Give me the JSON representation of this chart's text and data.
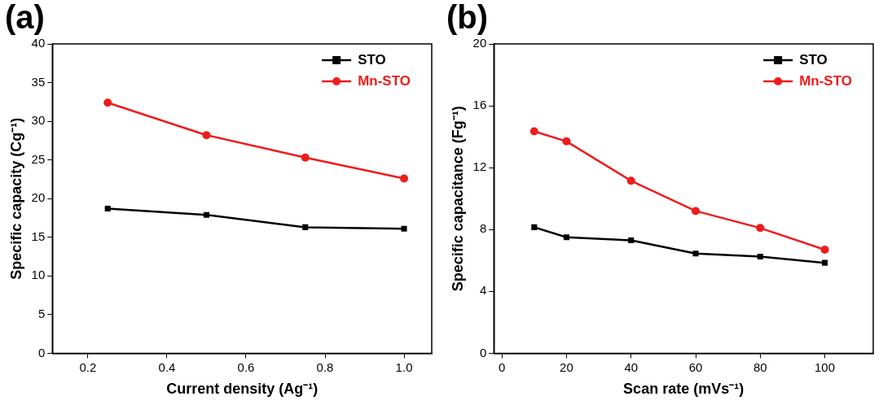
{
  "chart_data": [
    {
      "type": "line",
      "title": "(a)",
      "xlabel": "Current density (Ag⁻¹)",
      "ylabel": "Specific capacity (Cg⁻¹)",
      "x": [
        0.25,
        0.5,
        0.75,
        1.0
      ],
      "xlim": [
        0.11,
        1.07
      ],
      "xticks": [
        0.2,
        0.4,
        0.6,
        0.8,
        {
          "value": 1,
          "label": "1.0"
        }
      ],
      "ylim": [
        0,
        40
      ],
      "yticks": [
        0,
        5,
        10,
        15,
        20,
        25,
        30,
        35,
        40
      ],
      "legend": "top right",
      "grid": false,
      "line_style": "solid",
      "series": [
        {
          "name": "STO",
          "color": "#000000",
          "marker": "square",
          "values": [
            18.7,
            17.9,
            16.3,
            16.1
          ]
        },
        {
          "name": "Mn-STO",
          "color": "#ee1c1c",
          "marker": "circle",
          "values": [
            32.4,
            28.2,
            25.3,
            22.6
          ]
        }
      ]
    },
    {
      "type": "line",
      "title": "(b)",
      "xlabel": "Scan rate (mVs⁻¹)",
      "ylabel": "Specific capacitance (Fg⁻¹)",
      "x": [
        10,
        20,
        40,
        60,
        80,
        100
      ],
      "xlim": [
        -2.5,
        115
      ],
      "xticks": [
        0,
        20,
        40,
        60,
        80,
        100
      ],
      "ylim": [
        0,
        20
      ],
      "yticks": [
        0,
        4,
        8,
        12,
        16,
        20
      ],
      "legend": "top right",
      "grid": false,
      "line_style": "solid",
      "series": [
        {
          "name": "STO",
          "color": "#000000",
          "marker": "square",
          "values": [
            8.15,
            7.5,
            7.3,
            6.45,
            6.25,
            5.85
          ]
        },
        {
          "name": "Mn-STO",
          "color": "#ee1c1c",
          "marker": "circle",
          "values": [
            14.35,
            13.7,
            11.15,
            9.2,
            8.1,
            6.7
          ]
        }
      ]
    }
  ]
}
